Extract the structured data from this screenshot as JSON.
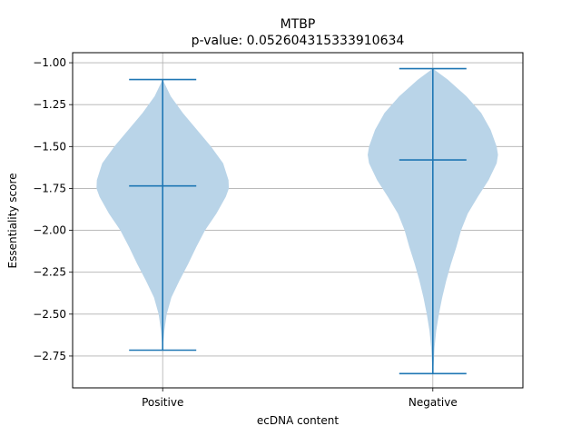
{
  "chart_data": {
    "type": "violin",
    "title": "MTBP",
    "subtitle": "p-value: 0.052604315333910634",
    "xlabel": "ecDNA content",
    "ylabel": "Essentiality score",
    "categories": [
      "Positive",
      "Negative"
    ],
    "ylim": [
      -2.94,
      -0.94
    ],
    "yticks": [
      -1.0,
      -1.25,
      -1.5,
      -1.75,
      -2.0,
      -2.25,
      -2.5,
      -2.75
    ],
    "ytick_labels": [
      "−1.00",
      "−1.25",
      "−1.50",
      "−1.75",
      "−2.00",
      "−2.25",
      "−2.50",
      "−2.75"
    ],
    "grid": true,
    "colors": {
      "body": "#b9d4e8",
      "line": "#1f77b4",
      "grid": "#b0b0b0"
    },
    "series": [
      {
        "category": "Positive",
        "max": -1.1,
        "mean": -1.735,
        "min": -2.715,
        "density": [
          [
            -1.1,
            0.0
          ],
          [
            -1.2,
            0.12
          ],
          [
            -1.3,
            0.3
          ],
          [
            -1.4,
            0.51
          ],
          [
            -1.5,
            0.72
          ],
          [
            -1.6,
            0.9
          ],
          [
            -1.7,
            0.98
          ],
          [
            -1.75,
            0.985
          ],
          [
            -1.8,
            0.94
          ],
          [
            -1.9,
            0.8
          ],
          [
            -2.0,
            0.63
          ],
          [
            -2.1,
            0.5
          ],
          [
            -2.2,
            0.38
          ],
          [
            -2.3,
            0.25
          ],
          [
            -2.4,
            0.13
          ],
          [
            -2.5,
            0.06
          ],
          [
            -2.6,
            0.025
          ],
          [
            -2.715,
            0.0
          ]
        ]
      },
      {
        "category": "Negative",
        "max": -1.035,
        "mean": -1.58,
        "min": -2.855,
        "density": [
          [
            -1.035,
            0.0
          ],
          [
            -1.1,
            0.22
          ],
          [
            -1.2,
            0.5
          ],
          [
            -1.3,
            0.72
          ],
          [
            -1.4,
            0.86
          ],
          [
            -1.5,
            0.95
          ],
          [
            -1.55,
            0.97
          ],
          [
            -1.6,
            0.95
          ],
          [
            -1.7,
            0.83
          ],
          [
            -1.8,
            0.67
          ],
          [
            -1.9,
            0.52
          ],
          [
            -2.0,
            0.42
          ],
          [
            -2.1,
            0.35
          ],
          [
            -2.2,
            0.27
          ],
          [
            -2.3,
            0.2
          ],
          [
            -2.4,
            0.14
          ],
          [
            -2.5,
            0.09
          ],
          [
            -2.6,
            0.05
          ],
          [
            -2.7,
            0.025
          ],
          [
            -2.8,
            0.012
          ],
          [
            -2.855,
            0.0
          ]
        ]
      }
    ]
  }
}
